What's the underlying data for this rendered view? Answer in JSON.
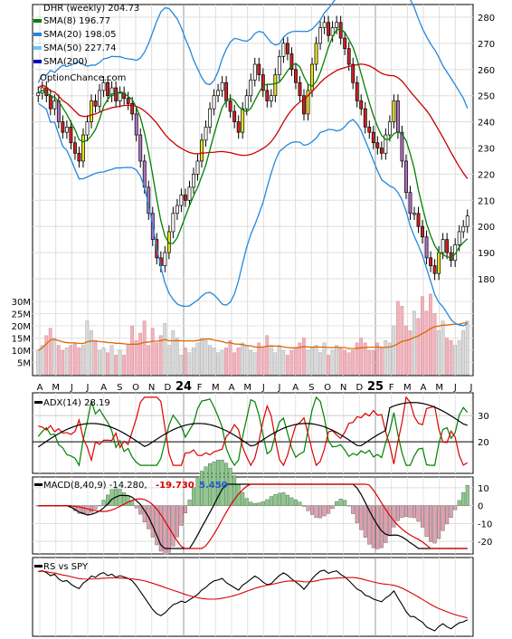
{
  "main_panel": {
    "title": "DHR (weekly) 204.73",
    "watermark": "OptionChance.com",
    "legend": [
      {
        "label": "SMA(8) 196.77",
        "color": "#008000"
      },
      {
        "label": "SMA(20) 198.05",
        "color": "#2288dd"
      },
      {
        "label": "SMA(50) 227.74",
        "color": "#66ccee"
      },
      {
        "label": "SMA(200)",
        "color": "#0000cc"
      }
    ]
  },
  "adx_panel": {
    "title": "ADX(14) 28.19"
  },
  "macd_panel": {
    "title": "MACD(8,40,9) -14.280,",
    "value_red": "-19.730",
    "value_blue": "5.450"
  },
  "rs_panel": {
    "title": "RS vs SPY"
  },
  "colors": {
    "up": "#ffffff",
    "down": "#cc2222",
    "bull_highlight": "#e8e020",
    "bear_highlight": "#b070c0",
    "sma8": "#008000",
    "sma20": "#2288dd",
    "sma50": "#66ccee",
    "sma200_main": "#cc0000",
    "volume_up": "#d9d9d9",
    "volume_down": "#f0b4bc",
    "volume_ma": "#dd6600",
    "adx": "#000000",
    "di_plus": "#008000",
    "di_minus": "#dd0000",
    "macd": "#000000",
    "signal": "#dd0000",
    "hist_pos": "#88cc88",
    "hist_neg": "#e0a0b0",
    "rs": "#000000",
    "rs_ma": "#dd0000"
  },
  "chart_data": [
    {
      "type": "candlestick",
      "id": "price",
      "title": "DHR (weekly) 204.73",
      "y_ticks": [
        180,
        190,
        200,
        210,
        220,
        230,
        240,
        250,
        260,
        270,
        280
      ],
      "ylim": [
        172,
        284
      ],
      "x_tick_labels": [
        "A",
        "M",
        "J",
        "J",
        "A",
        "S",
        "O",
        "N",
        "D",
        "24",
        "F",
        "M",
        "A",
        "M",
        "J",
        "J",
        "A",
        "S",
        "O",
        "N",
        "D",
        "25",
        "F",
        "M",
        "A",
        "M",
        "J",
        "J"
      ],
      "close": [
        251,
        253,
        250,
        245,
        248,
        240,
        236,
        238,
        232,
        228,
        225,
        235,
        240,
        248,
        246,
        252,
        255,
        250,
        253,
        248,
        251,
        249,
        247,
        243,
        235,
        225,
        215,
        205,
        195,
        188,
        185,
        190,
        198,
        205,
        208,
        212,
        210,
        215,
        220,
        225,
        233,
        238,
        245,
        250,
        252,
        255,
        248,
        244,
        240,
        236,
        245,
        250,
        256,
        262,
        258,
        252,
        248,
        250,
        258,
        265,
        270,
        266,
        260,
        255,
        250,
        243,
        252,
        262,
        270,
        276,
        278,
        273,
        276,
        278,
        272,
        268,
        262,
        255,
        248,
        245,
        238,
        236,
        232,
        230,
        228,
        235,
        240,
        248,
        236,
        225,
        213,
        205,
        205,
        200,
        196,
        188,
        185,
        182,
        190,
        195,
        190,
        187,
        193,
        198,
        200,
        204
      ]
    },
    {
      "type": "bar",
      "id": "volume",
      "y_ticks": [
        "5M",
        "10M",
        "15M",
        "20M",
        "25M",
        "30M"
      ],
      "ylim": [
        0,
        34
      ],
      "values": [
        10,
        12,
        16,
        19,
        15,
        12,
        10,
        11,
        12,
        13,
        11,
        12,
        22,
        18,
        14,
        10,
        11,
        9,
        12,
        8,
        10,
        8,
        12,
        20,
        14,
        17,
        22,
        12,
        19,
        13,
        16,
        21,
        12,
        18,
        15,
        8,
        11,
        9,
        11,
        13,
        15,
        14,
        12,
        11,
        9,
        10,
        11,
        14,
        9,
        11,
        13,
        12,
        10,
        9,
        13,
        11,
        16,
        12,
        9,
        12,
        10,
        8,
        10,
        11,
        13,
        15,
        10,
        11,
        12,
        9,
        13,
        8,
        10,
        12,
        11,
        10,
        9,
        10,
        13,
        15,
        13,
        10,
        10,
        13,
        11,
        14,
        13,
        20,
        30,
        28,
        20,
        18,
        26,
        23,
        32,
        26,
        33,
        25,
        18,
        22,
        15,
        14,
        12,
        14,
        18,
        22
      ]
    },
    {
      "type": "line",
      "id": "adx",
      "title": "ADX(14) 28.19",
      "y_ticks": [
        20,
        30
      ],
      "ylim": [
        10,
        38
      ]
    },
    {
      "type": "line",
      "id": "macd",
      "title": "MACD(8,40,9) -14.280, -19.730, 5.450",
      "y_ticks": [
        10,
        0,
        -10,
        -20
      ],
      "ylim": [
        -25,
        13
      ]
    },
    {
      "type": "line",
      "id": "rs",
      "title": "RS vs SPY"
    }
  ]
}
